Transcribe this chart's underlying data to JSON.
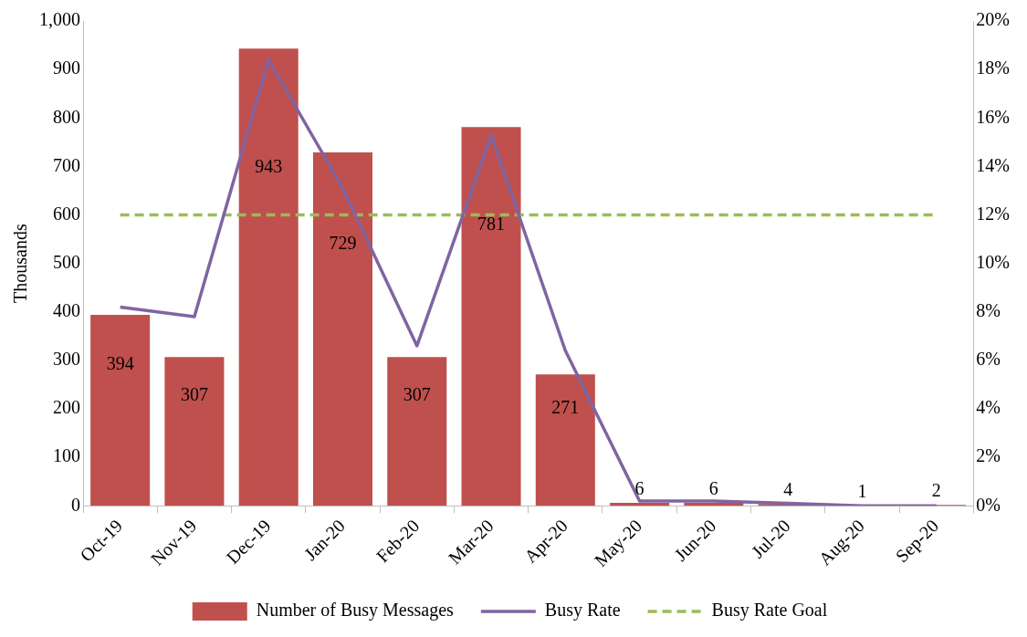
{
  "chart_data": {
    "type": "bar",
    "categories": [
      "Oct-19",
      "Nov-19",
      "Dec-19",
      "Jan-20",
      "Feb-20",
      "Mar-20",
      "Apr-20",
      "May-20",
      "Jun-20",
      "Jul-20",
      "Aug-20",
      "Sep-20"
    ],
    "ylabel": "Thousands",
    "ylim": [
      0,
      1000
    ],
    "yticks": [
      0,
      100,
      200,
      300,
      400,
      500,
      600,
      700,
      800,
      900,
      {
        "value": 1000,
        "label": "1,000"
      }
    ],
    "y2lim": [
      0,
      20
    ],
    "y2ticks": [
      {
        "value": 0,
        "label": "0%"
      },
      {
        "value": 2,
        "label": "2%"
      },
      {
        "value": 4,
        "label": "4%"
      },
      {
        "value": 6,
        "label": "6%"
      },
      {
        "value": 8,
        "label": "8%"
      },
      {
        "value": 10,
        "label": "10%"
      },
      {
        "value": 12,
        "label": "12%"
      },
      {
        "value": 14,
        "label": "14%"
      },
      {
        "value": 16,
        "label": "16%"
      },
      {
        "value": 18,
        "label": "18%"
      },
      {
        "value": 20,
        "label": "20%"
      }
    ],
    "grid": false,
    "legend": "bottom",
    "series": [
      {
        "name": "Number of Busy Messages",
        "color": "#c0504d",
        "values": [
          394,
          307,
          943,
          729,
          307,
          781,
          271,
          6,
          6,
          4,
          1,
          2
        ],
        "value_labels": [
          "394",
          "307",
          "943",
          "729",
          "307",
          "781",
          "271",
          "6",
          "6",
          "4",
          "1",
          "2"
        ]
      },
      {
        "name": "Busy Rate",
        "type": "line",
        "axis": "y2",
        "color": "#8064a2",
        "line_style": "solid",
        "marker": "none",
        "values": [
          8.2,
          7.8,
          18.4,
          13.1,
          6.6,
          15.3,
          6.4,
          0.2,
          0.2,
          0.1,
          0.0,
          0.0
        ]
      },
      {
        "name": "Busy Rate Goal",
        "type": "line",
        "axis": "y2",
        "color": "#9bbb59",
        "line_style": "dashed",
        "marker": "none",
        "values": [
          12,
          12,
          12,
          12,
          12,
          12,
          12,
          12,
          12,
          12,
          12,
          12
        ]
      }
    ]
  }
}
